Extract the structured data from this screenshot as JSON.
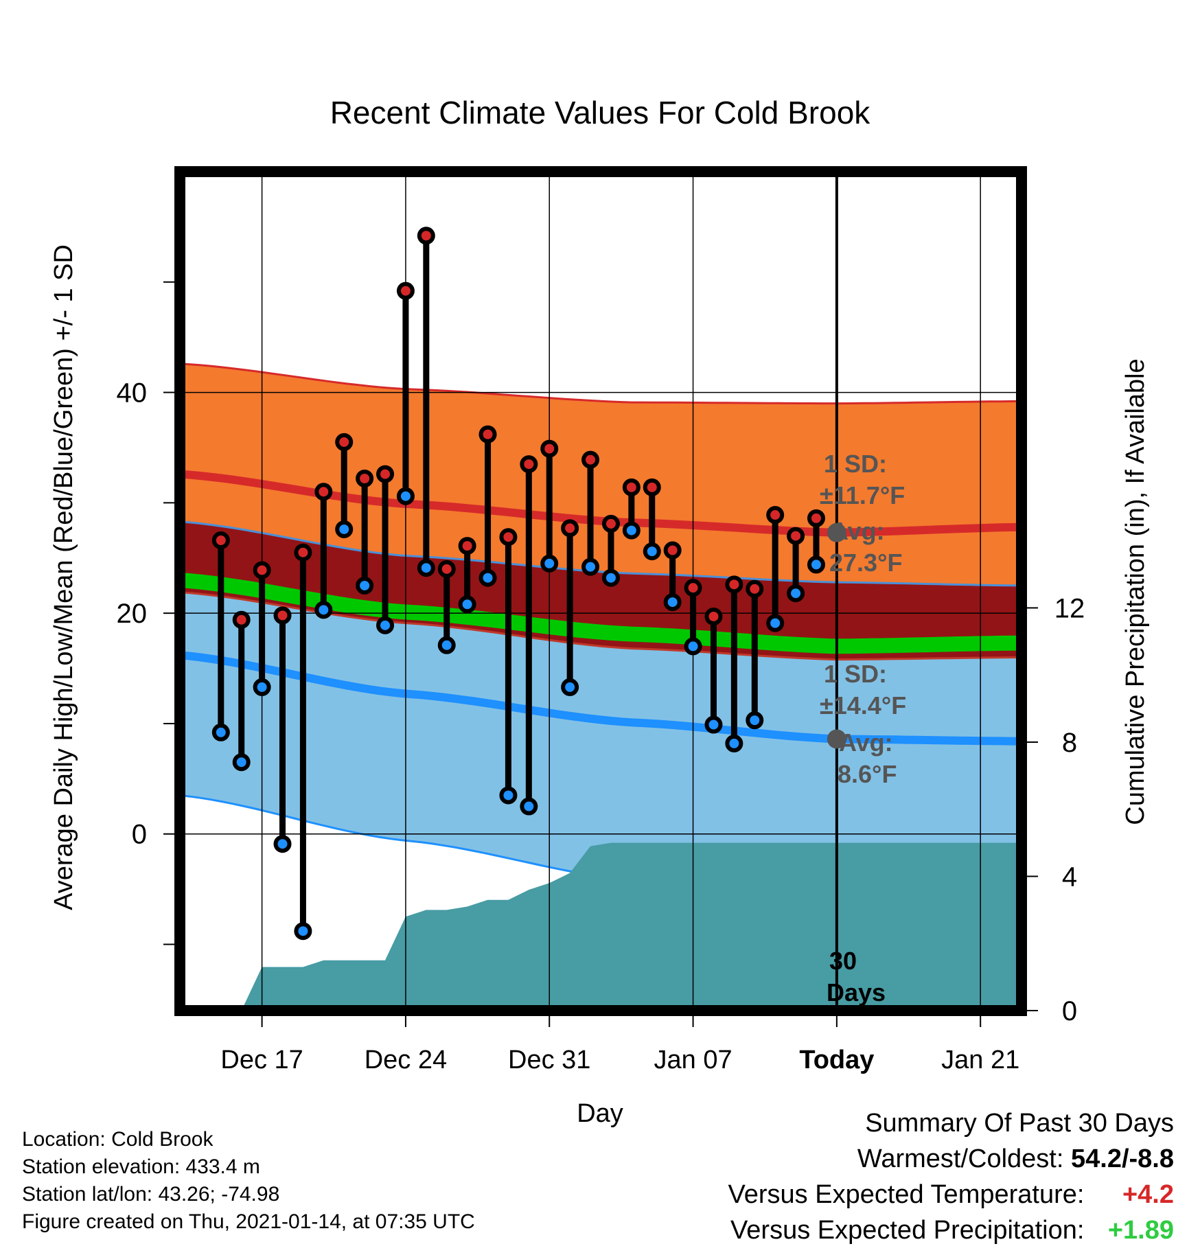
{
  "chart_data": {
    "type": "line",
    "title": "Recent Climate Values For Cold Brook",
    "xlabel": "Day",
    "ylabel": "Average Daily High/Low/Mean (Red/Blue/Green) +/- 1 SD",
    "y2label": "Cumulative Precipitation (in), If Available",
    "x_ticks": [
      "Dec 17",
      "Dec 24",
      "Dec 31",
      "Jan 07",
      "Today",
      "Jan 21"
    ],
    "y_ticks": [
      0,
      20,
      40
    ],
    "y2_ticks": [
      0,
      4,
      8,
      12
    ],
    "ylim": [
      -16,
      60
    ],
    "y2lim": [
      0,
      25
    ],
    "xlim": [
      "2020-12-13",
      "2021-01-23"
    ],
    "grid": true,
    "today": "2021-01-14",
    "period_label": "30 Days",
    "days": [
      "2020-12-15",
      "2020-12-16",
      "2020-12-17",
      "2020-12-18",
      "2020-12-19",
      "2020-12-20",
      "2020-12-21",
      "2020-12-22",
      "2020-12-23",
      "2020-12-24",
      "2020-12-25",
      "2020-12-26",
      "2020-12-27",
      "2020-12-28",
      "2020-12-29",
      "2020-12-30",
      "2020-12-31",
      "2021-01-01",
      "2021-01-02",
      "2021-01-03",
      "2021-01-04",
      "2021-01-05",
      "2021-01-06",
      "2021-01-07",
      "2021-01-08",
      "2021-01-09",
      "2021-01-10",
      "2021-01-11",
      "2021-01-12",
      "2021-01-13"
    ],
    "series": [
      {
        "name": "High",
        "color": "#d62728",
        "values": [
          26.6,
          19.4,
          23.9,
          19.8,
          25.5,
          31.0,
          35.5,
          32.2,
          32.6,
          49.2,
          54.2,
          24.0,
          26.1,
          36.2,
          26.9,
          33.5,
          34.9,
          27.7,
          33.9,
          28.1,
          31.4,
          31.4,
          25.7,
          22.3,
          19.7,
          22.6,
          22.2,
          28.9,
          27.0,
          28.6
        ]
      },
      {
        "name": "Low",
        "color": "#1e90ff",
        "values": [
          9.2,
          6.5,
          13.3,
          -0.9,
          -8.8,
          20.3,
          27.6,
          22.5,
          18.9,
          30.6,
          24.1,
          17.1,
          20.8,
          23.2,
          3.5,
          2.5,
          24.5,
          13.3,
          24.2,
          23.2,
          27.5,
          25.6,
          21.0,
          17.0,
          9.9,
          8.2,
          10.3,
          19.1,
          21.8,
          24.4
        ]
      }
    ],
    "normals": {
      "x": [
        "2020-12-13",
        "2020-12-24",
        "2021-01-04",
        "2021-01-14",
        "2021-01-23"
      ],
      "high_mean": [
        32.6,
        29.9,
        28.2,
        27.3,
        27.8
      ],
      "high_upper": [
        42.6,
        40.3,
        39.1,
        39.0,
        39.2
      ],
      "high_lower": [
        28.3,
        25.2,
        23.6,
        22.8,
        22.5
      ],
      "mean": [
        23.0,
        20.1,
        18.1,
        17.0,
        17.3
      ],
      "low_mean": [
        16.2,
        12.7,
        10.1,
        8.6,
        8.4
      ],
      "low_upper": [
        21.9,
        19.1,
        16.8,
        15.8,
        16.0
      ],
      "low_lower": [
        3.5,
        -0.6,
        -4.2,
        -6.0,
        -6.5
      ]
    },
    "precip": {
      "x": [
        "2020-12-15",
        "2020-12-16",
        "2020-12-17",
        "2020-12-18",
        "2020-12-19",
        "2020-12-20",
        "2020-12-21",
        "2020-12-22",
        "2020-12-23",
        "2020-12-24",
        "2020-12-25",
        "2020-12-26",
        "2020-12-27",
        "2020-12-28",
        "2020-12-29",
        "2020-12-30",
        "2020-12-31",
        "2021-01-01",
        "2021-01-02",
        "2021-01-03",
        "2021-01-14",
        "2021-01-23"
      ],
      "values": [
        0,
        0,
        1.3,
        1.3,
        1.3,
        1.5,
        1.5,
        1.5,
        1.5,
        2.8,
        3.0,
        3.0,
        3.1,
        3.3,
        3.3,
        3.6,
        3.8,
        4.1,
        4.9,
        5.0,
        5.0,
        5.0
      ]
    },
    "annotations": {
      "high_sd": "1 SD:",
      "high_sd_value": "±11.7°F",
      "high_avg": "Avg:",
      "high_avg_value": "27.3°F",
      "low_sd": "1 SD:",
      "low_sd_value": "±14.4°F",
      "low_avg": "Avg:",
      "low_avg_value": "8.6°F"
    },
    "colors": {
      "high_band": "#f47a2e",
      "high_line": "#d62a2a",
      "mid_band": "#931416",
      "mean_line": "#00c800",
      "low_band": "#82c1e6",
      "low_line": "#1e90ff",
      "precip_fill": "#489ca4"
    }
  },
  "footer": {
    "location": "Location: Cold Brook",
    "elevation": "Station elevation: 433.4 m",
    "latlon": "Station lat/lon: 43.26; -74.98",
    "created": "Figure created on Thu, 2021-01-14, at 07:35 UTC"
  },
  "summary": {
    "title": "Summary Of Past 30 Days",
    "warmest_label": "Warmest/Coldest:",
    "warmest_value": "54.2/-8.8",
    "temp_label": "Versus Expected Temperature:",
    "temp_value": "+4.2",
    "precip_label": "Versus Expected Precipitation:",
    "precip_value": "+1.89"
  }
}
